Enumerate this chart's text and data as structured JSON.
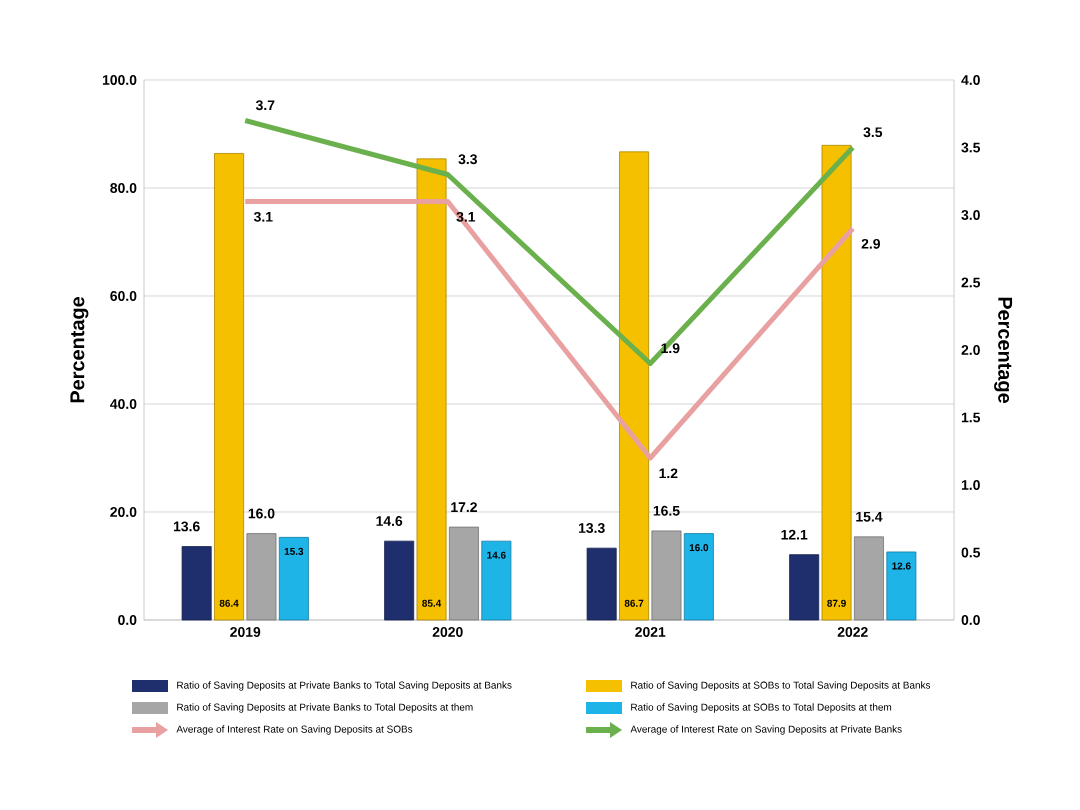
{
  "chart_data": {
    "type": "bar",
    "categories": [
      "2019",
      "2020",
      "2021",
      "2022"
    ],
    "ylabel": "Percentage",
    "y2label": "Percentage",
    "ylim": [
      0,
      100
    ],
    "yticks": [
      {
        "value": 0,
        "label": "0.0"
      },
      {
        "value": 20,
        "label": "20.0"
      },
      {
        "value": 40,
        "label": "40.0"
      },
      {
        "value": 60,
        "label": "60.0"
      },
      {
        "value": 80,
        "label": "80.0"
      },
      {
        "value": 100,
        "label": "100.0"
      }
    ],
    "y2lim": [
      0,
      4
    ],
    "y2ticks": [
      {
        "value": 0,
        "label": "0.0"
      },
      {
        "value": 0.5,
        "label": "0.5"
      },
      {
        "value": 1,
        "label": "1.0"
      },
      {
        "value": 1.5,
        "label": "1.5"
      },
      {
        "value": 2,
        "label": "2.0"
      },
      {
        "value": 2.5,
        "label": "2.5"
      },
      {
        "value": 3,
        "label": "3.0"
      },
      {
        "value": 3.5,
        "label": "3.5"
      },
      {
        "value": 4,
        "label": "4.0"
      }
    ],
    "grid": "y",
    "legend": "bottom",
    "series": [
      {
        "name": "Ratio of Saving Deposits at Private Banks to Total Saving Deposits at Banks",
        "color": "#1f2f6e",
        "values": [
          13.6,
          14.6,
          13.3,
          12.1
        ],
        "value_labels": [
          "13.6",
          "14.6",
          "13.3",
          "12.1"
        ]
      },
      {
        "name": "Ratio of Saving Deposits at SOBs to Total Saving Deposits at Banks",
        "color": "#f5c000",
        "values": [
          86.4,
          85.4,
          86.7,
          87.9
        ],
        "value_labels": [
          "86.4",
          "85.4",
          "86.7",
          "87.9"
        ]
      },
      {
        "name": "Ratio of Saving Deposits at Private Banks to Total Deposits at them",
        "color": "#a6a6a6",
        "values": [
          16.0,
          17.2,
          16.5,
          15.4
        ],
        "value_labels": [
          "16.0",
          "17.2",
          "16.5",
          "15.4"
        ]
      },
      {
        "name": "Ratio of Saving Deposits at SOBs to Total Deposits at them",
        "color": "#1eb4e8",
        "values": [
          15.3,
          14.6,
          16.0,
          12.6
        ],
        "value_labels": [
          "15.3",
          "14.6",
          "16.0",
          "12.6"
        ]
      },
      {
        "name": "Average of Interest Rate on Saving Deposits at SOBs",
        "type": "line",
        "axis": "y2",
        "color": "#e8a0a0",
        "values": [
          3.1,
          3.1,
          1.2,
          2.9
        ],
        "value_labels": [
          "3.1",
          "3.1",
          "1.2",
          "2.9"
        ]
      },
      {
        "name": "Average of Interest Rate on Saving Deposits at Private Banks",
        "type": "line",
        "axis": "y2",
        "color": "#6ab04c",
        "values": [
          3.7,
          3.3,
          1.9,
          3.5
        ],
        "value_labels": [
          "3.7",
          "3.3",
          "1.9",
          "3.5"
        ]
      }
    ]
  }
}
